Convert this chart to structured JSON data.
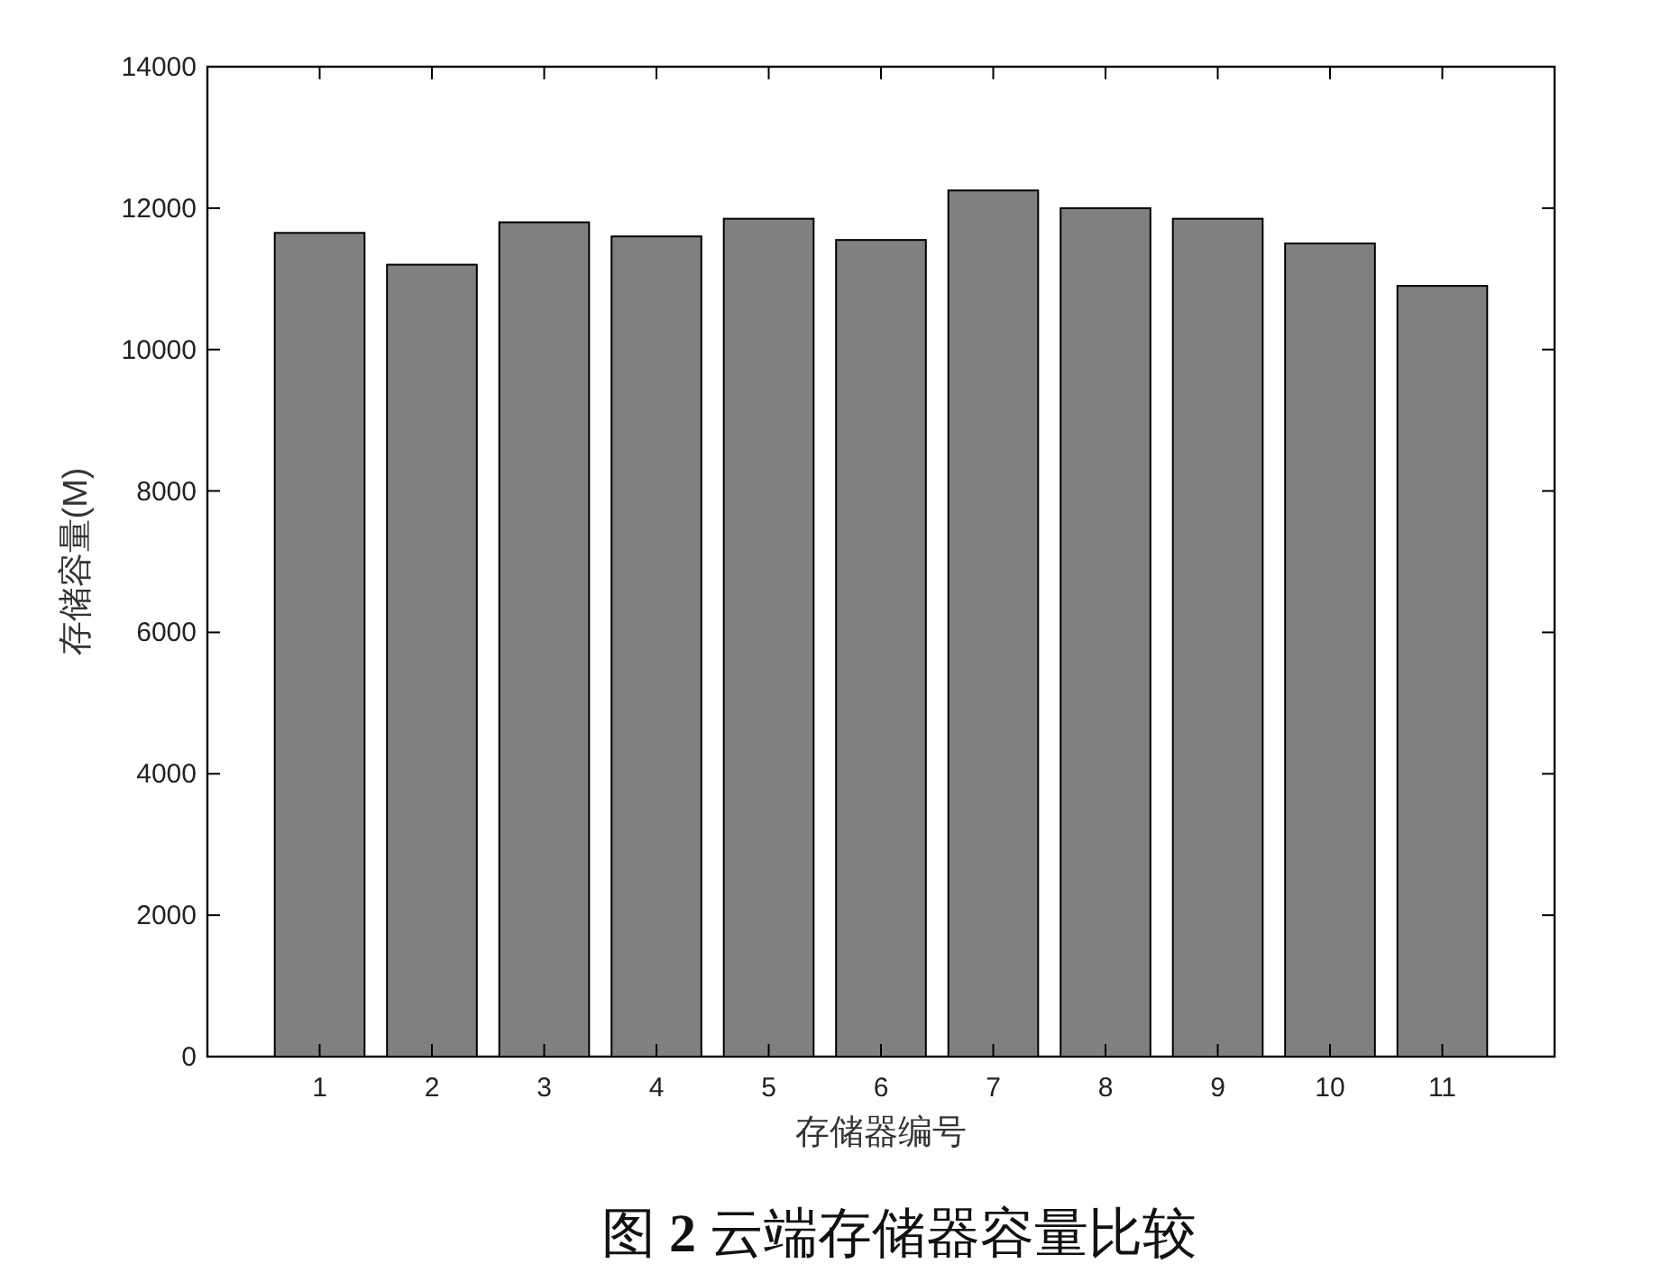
{
  "chart_data": {
    "type": "bar",
    "title": "图 **2** 云端存储器容量比较",
    "xlabel": "存储器编号",
    "ylabel": "存储容量(M)",
    "categories": [
      "1",
      "2",
      "3",
      "4",
      "5",
      "6",
      "7",
      "8",
      "9",
      "10",
      "11"
    ],
    "values": [
      11650,
      11200,
      11800,
      11600,
      11850,
      11550,
      12250,
      12000,
      11850,
      11500,
      10900
    ],
    "color": "#808080",
    "ylim": [
      0,
      14000
    ],
    "yticks": [
      0,
      2000,
      4000,
      6000,
      8000,
      10000,
      12000,
      14000
    ]
  }
}
